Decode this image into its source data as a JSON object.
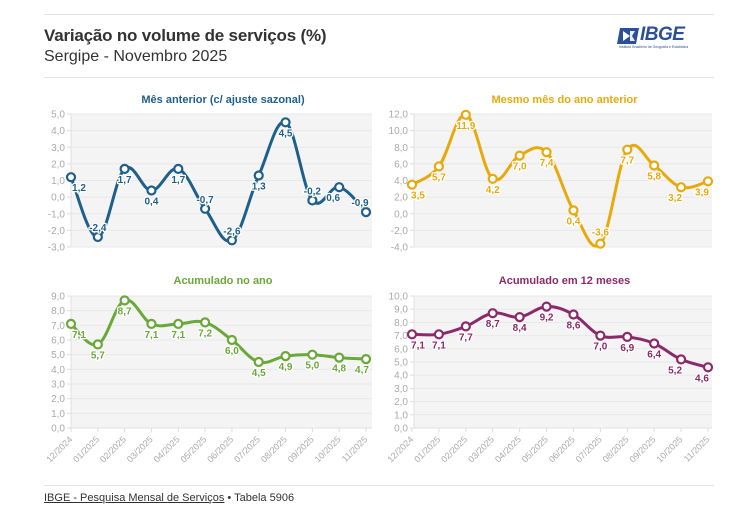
{
  "header": {
    "title": "Variação no volume de serviços (%)",
    "subtitle": "Sergipe - Novembro 2025",
    "logo_text": "IBGE",
    "logo_subtext": "Instituto Brasileiro de Geografia e Estatística",
    "logo_color": "#2b4f9a"
  },
  "footer": {
    "source_link": "IBGE - Pesquisa Mensal de Serviços",
    "separator": " • ",
    "table": "Tabela 5906"
  },
  "chart_data": [
    {
      "type": "line",
      "title": "Mês anterior (c/ ajuste sazonal)",
      "color": "#1f5f8b",
      "categories": [
        "12/2024",
        "01/2025",
        "02/2025",
        "03/2025",
        "04/2025",
        "05/2025",
        "06/2025",
        "07/2025",
        "08/2025",
        "09/2025",
        "10/2025",
        "11/2025"
      ],
      "values": [
        1.2,
        -2.4,
        1.7,
        0.4,
        1.7,
        -0.7,
        -2.6,
        1.3,
        4.5,
        -0.2,
        0.6,
        -0.9
      ],
      "labels": [
        "1,2",
        "-2,4",
        "1,7",
        "0,4",
        "1,7",
        "-0,7",
        "-2,6",
        "1,3",
        "4,5",
        "-0,2",
        "0,6",
        "-0,9"
      ],
      "yticks": [
        "5,0",
        "4,0",
        "3,0",
        "2,0",
        "1,0",
        "0,0",
        "-1,0",
        "-2,0",
        "-3,0"
      ],
      "ylim": [
        -3,
        5
      ],
      "show_xticks": false,
      "grid": true
    },
    {
      "type": "line",
      "title": "Mesmo mês do ano anterior",
      "color": "#e8a90c",
      "categories": [
        "12/2024",
        "01/2025",
        "02/2025",
        "03/2025",
        "04/2025",
        "05/2025",
        "06/2025",
        "07/2025",
        "08/2025",
        "09/2025",
        "10/2025",
        "11/2025"
      ],
      "values": [
        3.5,
        5.7,
        11.9,
        4.2,
        7.0,
        7.4,
        0.4,
        -3.6,
        7.7,
        5.8,
        3.2,
        3.9
      ],
      "labels": [
        "3,5",
        "5,7",
        "11,9",
        "4,2",
        "7,0",
        "7,4",
        "0,4",
        "-3,6",
        "7,7",
        "5,8",
        "3,2",
        "3,9"
      ],
      "yticks": [
        "12,0",
        "10,0",
        "8,0",
        "6,0",
        "4,0",
        "2,0",
        "0,0",
        "-2,0",
        "-4,0"
      ],
      "ylim": [
        -4,
        12
      ],
      "show_xticks": false,
      "grid": true
    },
    {
      "type": "line",
      "title": "Acumulado no ano",
      "color": "#6aa83a",
      "categories": [
        "12/2024",
        "01/2025",
        "02/2025",
        "03/2025",
        "04/2025",
        "05/2025",
        "06/2025",
        "07/2025",
        "08/2025",
        "09/2025",
        "10/2025",
        "11/2025"
      ],
      "values": [
        7.1,
        5.7,
        8.7,
        7.1,
        7.1,
        7.2,
        6.0,
        4.5,
        4.9,
        5.0,
        4.8,
        4.7
      ],
      "labels": [
        "7,1",
        "5,7",
        "8,7",
        "7,1",
        "7,1",
        "7,2",
        "6,0",
        "4,5",
        "4,9",
        "5,0",
        "4,8",
        "4,7"
      ],
      "yticks": [
        "9,0",
        "8,0",
        "7,0",
        "6,0",
        "5,0",
        "4,0",
        "3,0",
        "2,0",
        "1,0",
        "0,0"
      ],
      "ylim": [
        0,
        9
      ],
      "show_xticks": true,
      "grid": true
    },
    {
      "type": "line",
      "title": "Acumulado em 12 meses",
      "color": "#8b2a6b",
      "categories": [
        "12/2024",
        "01/2025",
        "02/2025",
        "03/2025",
        "04/2025",
        "05/2025",
        "06/2025",
        "07/2025",
        "08/2025",
        "09/2025",
        "10/2025",
        "11/2025"
      ],
      "values": [
        7.1,
        7.1,
        7.7,
        8.7,
        8.4,
        9.2,
        8.6,
        7.0,
        6.9,
        6.4,
        5.2,
        4.6
      ],
      "labels": [
        "7,1",
        "7,1",
        "7,7",
        "8,7",
        "8,4",
        "9,2",
        "8,6",
        "7,0",
        "6,9",
        "6,4",
        "5,2",
        "4,6"
      ],
      "yticks": [
        "10,0",
        "9,0",
        "8,0",
        "7,0",
        "6,0",
        "5,0",
        "4,0",
        "3,0",
        "2,0",
        "1,0",
        "0,0"
      ],
      "ylim": [
        0,
        10
      ],
      "show_xticks": true,
      "grid": true
    }
  ]
}
